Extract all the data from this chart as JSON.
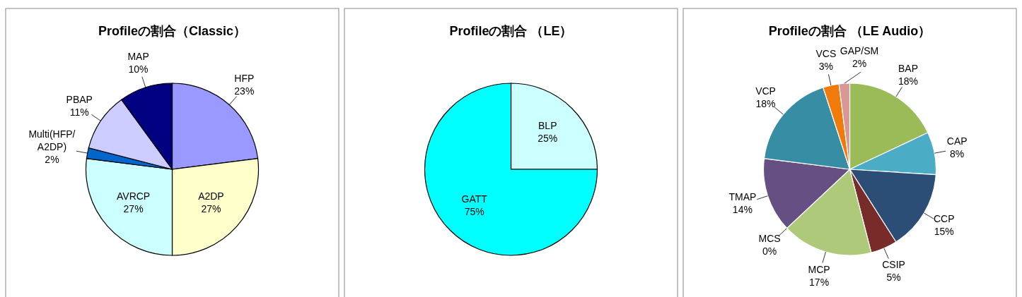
{
  "chart_data": [
    {
      "type": "pie",
      "title": "Profileの割合（Classic）",
      "categories": [
        "HFP",
        "A2DP",
        "AVRCP",
        "Multi(HFP/A2DP)",
        "PBAP",
        "MAP"
      ],
      "values": [
        23,
        27,
        27,
        2,
        11,
        10
      ],
      "value_labels": [
        "23%",
        "27%",
        "27%",
        "2%",
        "11%",
        "10%"
      ],
      "colors": [
        "#9999ff",
        "#ffffcc",
        "#ccffff",
        "#0066cc",
        "#ccccff",
        "#000080"
      ]
    },
    {
      "type": "pie",
      "title": "Profileの割合 （LE）",
      "categories": [
        "BLP",
        "GATT"
      ],
      "values": [
        25,
        75
      ],
      "value_labels": [
        "25%",
        "75%"
      ],
      "colors": [
        "#ccffff",
        "#00ffff"
      ]
    },
    {
      "type": "pie",
      "title": "Profileの割合 （LE Audio）",
      "categories": [
        "BAP",
        "CAP",
        "CCP",
        "CSIP",
        "MCP",
        "MCS",
        "TMAP",
        "VCP",
        "VCS",
        "GAP/SM"
      ],
      "values": [
        18,
        8,
        15,
        5,
        17,
        0,
        14,
        18,
        3,
        2
      ],
      "value_labels": [
        "18%",
        "8%",
        "15%",
        "5%",
        "17%",
        "0%",
        "14%",
        "18%",
        "3%",
        "2%"
      ],
      "colors": [
        "#9bbb59",
        "#4bacc6",
        "#2c4d75",
        "#772c2a",
        "#afc97a",
        "#8064a2",
        "#664f83",
        "#378da4",
        "#f17a0d",
        "#d99694"
      ]
    }
  ]
}
